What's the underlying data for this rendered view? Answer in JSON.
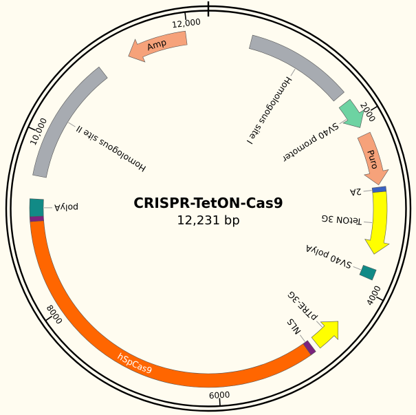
{
  "plasmid": {
    "name": "CRISPR-TetON-Cas9",
    "length_label": "12,231 bp",
    "total_bp": 12231
  },
  "ticks": [
    {
      "label": "2000",
      "bp": 2000
    },
    {
      "label": "4000",
      "bp": 4000
    },
    {
      "label": "6000",
      "bp": 6000
    },
    {
      "label": "8000",
      "bp": 8000
    },
    {
      "label": "10,000",
      "bp": 10000
    },
    {
      "label": "12,000",
      "bp": 12000
    }
  ],
  "features": [
    {
      "key": "homologous-site-i",
      "label": "Homologous site I",
      "start_bp": 487,
      "end_bp": 1680,
      "strand": "none",
      "color": "#A7ABB1",
      "label_pos": "inside-radial"
    },
    {
      "key": "sv40-promoter",
      "label": "SV40 promoter",
      "start_bp": 1780,
      "end_bp": 2105,
      "strand": "forward",
      "color": "#6DD3A2",
      "label_pos": "inside-radial"
    },
    {
      "key": "puro",
      "label": "Puro",
      "start_bp": 2200,
      "end_bp": 2790,
      "strand": "forward",
      "color": "#F6A27A",
      "label_pos": "on-feature"
    },
    {
      "key": "2a",
      "label": "2A",
      "start_bp": 2815,
      "end_bp": 2870,
      "strand": "none",
      "color": "#3A62C2",
      "label_pos": "inside-radial"
    },
    {
      "key": "teton-3g",
      "label": "TetON 3G",
      "start_bp": 2870,
      "end_bp": 3580,
      "strand": "forward",
      "color": "#FFFF00",
      "label_pos": "inside-radial"
    },
    {
      "key": "sv40-polya",
      "label": "SV40 polyA",
      "start_bp": 3740,
      "end_bp": 3860,
      "strand": "none",
      "color": "#118A86",
      "label_pos": "inside-radial"
    },
    {
      "key": "ptre-3g",
      "label": "pTRE-3G",
      "start_bp": 4450,
      "end_bp": 4800,
      "strand": "reverse",
      "color": "#FFFF00",
      "label_pos": "inside-radial"
    },
    {
      "key": "nls-1",
      "label": "NLS",
      "start_bp": 4860,
      "end_bp": 4925,
      "strand": "none",
      "color": "#7B237E",
      "label_pos": "inside-radial"
    },
    {
      "key": "hspcas9",
      "label": "hSpCas9",
      "start_bp": 4925,
      "end_bp": 9030,
      "strand": "none",
      "color": "#FF6600",
      "label_pos": "on-feature"
    },
    {
      "key": "nls-2",
      "label": "",
      "start_bp": 9030,
      "end_bp": 9085,
      "strand": "none",
      "color": "#7B237E",
      "label_pos": "none"
    },
    {
      "key": "polya",
      "label": "polyA",
      "start_bp": 9085,
      "end_bp": 9280,
      "strand": "none",
      "color": "#118A86",
      "label_pos": "inside-radial"
    },
    {
      "key": "homologous-site-ii",
      "label": "Homologous site II",
      "start_bp": 9540,
      "end_bp": 10950,
      "strand": "none",
      "color": "#A7ABB1",
      "label_pos": "inside-radial"
    },
    {
      "key": "amp",
      "label": "Amp",
      "start_bp": 11290,
      "end_bp": 11980,
      "strand": "reverse",
      "color": "#F6A27A",
      "label_pos": "on-feature"
    }
  ]
}
